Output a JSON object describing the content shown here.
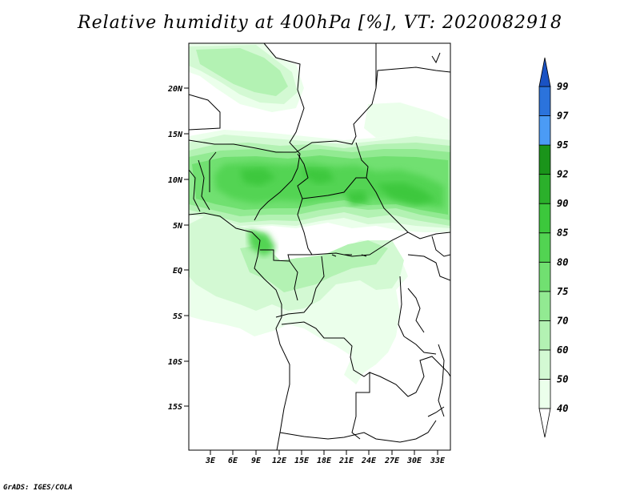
{
  "title": "Relative humidity at 400hPa [%], VT: 2020082918",
  "credit": "GrADS: IGES/COLA",
  "map": {
    "lat_labels": [
      "20N",
      "15N",
      "10N",
      "5N",
      "EQ",
      "5S",
      "10S",
      "15S"
    ],
    "lon_labels": [
      "3E",
      "6E",
      "9E",
      "12E",
      "15E",
      "18E",
      "21E",
      "24E",
      "27E",
      "30E",
      "33E"
    ]
  },
  "colorbar": {
    "levels": [
      "40",
      "50",
      "60",
      "70",
      "75",
      "80",
      "85",
      "90",
      "92",
      "95",
      "97",
      "99"
    ],
    "colors": [
      "#ffffff",
      "#ebffeb",
      "#d3f9d3",
      "#b3f2b3",
      "#92ea92",
      "#71e071",
      "#52d452",
      "#3cc83c",
      "#2bb02b",
      "#1a941a",
      "#4b9bf5",
      "#2b73dc",
      "#1a52c3"
    ]
  }
}
